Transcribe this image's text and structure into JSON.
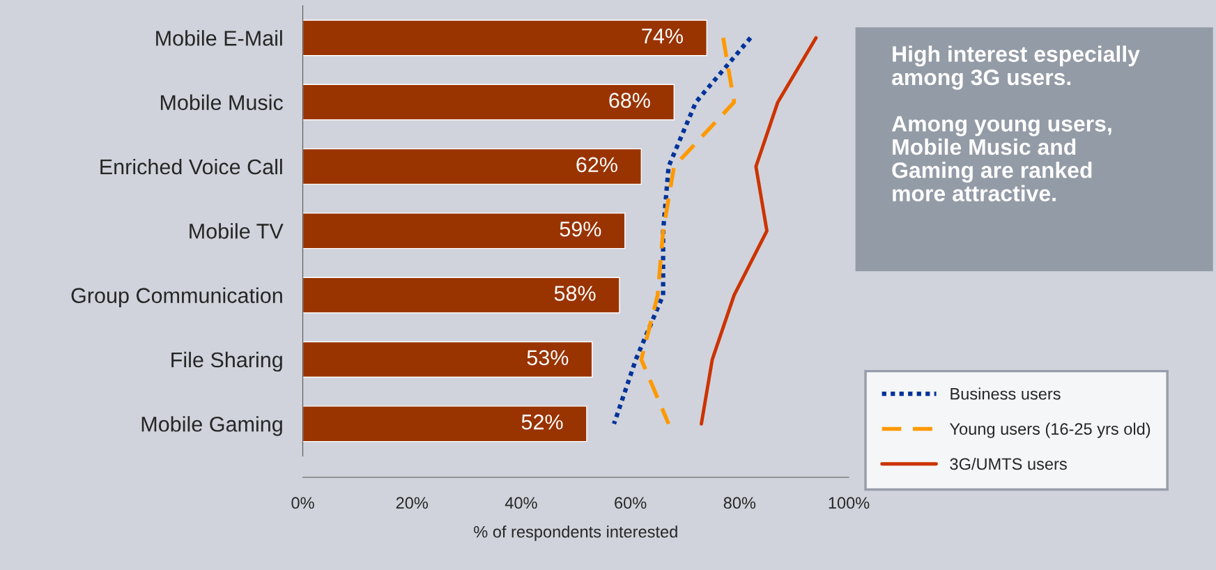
{
  "chart_data": {
    "type": "bar",
    "orientation": "horizontal",
    "xlabel": "% of respondents interested",
    "categories": [
      "Mobile E-Mail",
      "Mobile Music",
      "Enriched Voice Call",
      "Mobile TV",
      "Group Communication",
      "File Sharing",
      "Mobile Gaming"
    ],
    "values": [
      74,
      68,
      62,
      59,
      58,
      53,
      52
    ],
    "color": "#993300",
    "value_labels": [
      "74%",
      "68%",
      "62%",
      "59%",
      "58%",
      "53%",
      "52%"
    ],
    "series": [
      {
        "name": "Business users",
        "type": "line",
        "color": "#003399",
        "line_style": "dotted",
        "values": [
          82,
          72,
          67,
          66,
          66,
          61,
          57
        ]
      },
      {
        "name": "Young users (16-25 yrs old)",
        "type": "line",
        "color": "#ff9900",
        "line_style": "dashed",
        "values": [
          77,
          79,
          68,
          66,
          65,
          62,
          67
        ]
      },
      {
        "name": "3G/UMTS users",
        "type": "line",
        "color": "#cc3300",
        "line_style": "solid",
        "values": [
          94,
          87,
          83,
          85,
          79,
          75,
          73
        ]
      }
    ],
    "xlim": [
      0,
      100
    ],
    "xticks": [
      {
        "value": 0,
        "label": "0%"
      },
      {
        "value": 20,
        "label": "20%"
      },
      {
        "value": 40,
        "label": "40%"
      },
      {
        "value": 60,
        "label": "60%"
      },
      {
        "value": 80,
        "label": "80%"
      },
      {
        "value": 100,
        "label": "100%"
      }
    ],
    "grid": false,
    "legend": "right",
    "marker": "none",
    "annotations": [
      "High interest especially\namong 3G users.\n\nAmong young users,\nMobile Music and\nGaming are ranked\nmore attractive."
    ]
  }
}
